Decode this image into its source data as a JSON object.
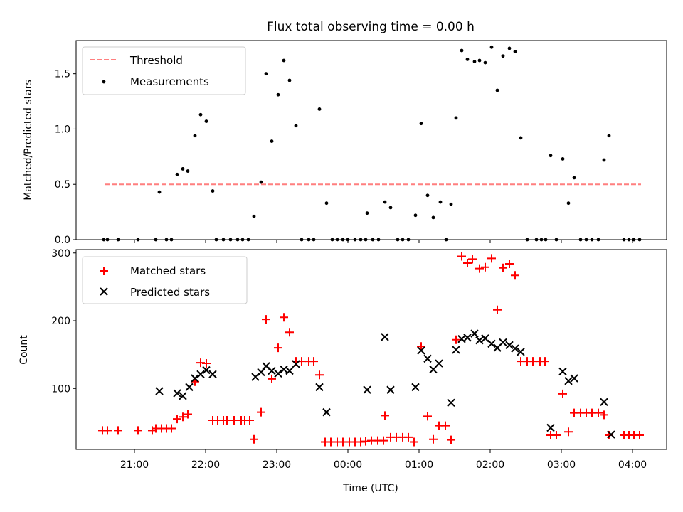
{
  "chart_data": [
    {
      "type": "scatter",
      "title": "Flux total observing time = 0.00 h",
      "xlabel": "",
      "ylabel": "Matched/Predicted stars",
      "x_unit": "hours since 21:00 UTC",
      "xlim": [
        -0.82,
        7.48
      ],
      "ylim": [
        0,
        1.8
      ],
      "yticks": [
        0.0,
        0.5,
        1.0,
        1.5
      ],
      "ytick_labels": [
        "0.0",
        "0.5",
        "1.0",
        "1.5"
      ],
      "legend_position": "top-left",
      "legend": [
        "Threshold",
        "Measurements"
      ],
      "threshold": {
        "name": "Threshold",
        "value": 0.5,
        "x_range": [
          -0.42,
          7.12
        ],
        "color": "#ff7f7f"
      },
      "series": [
        {
          "name": "Measurements",
          "marker": "dot",
          "color": "#000000",
          "points": [
            [
              -0.43,
              0
            ],
            [
              -0.38,
              0
            ],
            [
              -0.23,
              0
            ],
            [
              0.05,
              0
            ],
            [
              0.3,
              0
            ],
            [
              0.35,
              0.43
            ],
            [
              0.45,
              0
            ],
            [
              0.52,
              0
            ],
            [
              0.6,
              0.59
            ],
            [
              0.68,
              0.64
            ],
            [
              0.75,
              0.62
            ],
            [
              0.85,
              0.94
            ],
            [
              0.93,
              1.13
            ],
            [
              1.01,
              1.07
            ],
            [
              1.1,
              0.44
            ],
            [
              1.15,
              0
            ],
            [
              1.25,
              0
            ],
            [
              1.35,
              0
            ],
            [
              1.45,
              0
            ],
            [
              1.52,
              0
            ],
            [
              1.6,
              0
            ],
            [
              1.68,
              0.21
            ],
            [
              1.78,
              0.52
            ],
            [
              1.85,
              1.5
            ],
            [
              1.93,
              0.89
            ],
            [
              2.02,
              1.31
            ],
            [
              2.1,
              1.62
            ],
            [
              2.18,
              1.44
            ],
            [
              2.27,
              1.03
            ],
            [
              2.35,
              0
            ],
            [
              2.45,
              0
            ],
            [
              2.52,
              0
            ],
            [
              2.6,
              1.18
            ],
            [
              2.7,
              0.33
            ],
            [
              2.78,
              0
            ],
            [
              2.85,
              0
            ],
            [
              2.93,
              0
            ],
            [
              3.0,
              0
            ],
            [
              3.1,
              0
            ],
            [
              3.18,
              0
            ],
            [
              3.25,
              0
            ],
            [
              3.27,
              0.24
            ],
            [
              3.35,
              0
            ],
            [
              3.43,
              0
            ],
            [
              3.52,
              0.34
            ],
            [
              3.6,
              0.29
            ],
            [
              3.7,
              0
            ],
            [
              3.77,
              0
            ],
            [
              3.85,
              0
            ],
            [
              3.95,
              0.22
            ],
            [
              4.03,
              1.05
            ],
            [
              4.12,
              0.4
            ],
            [
              4.2,
              0.2
            ],
            [
              4.3,
              0.34
            ],
            [
              4.38,
              0
            ],
            [
              4.45,
              0.32
            ],
            [
              4.52,
              1.1
            ],
            [
              4.6,
              1.71
            ],
            [
              4.68,
              1.63
            ],
            [
              4.78,
              1.61
            ],
            [
              4.85,
              1.62
            ],
            [
              4.93,
              1.6
            ],
            [
              5.02,
              1.74
            ],
            [
              5.1,
              1.35
            ],
            [
              5.18,
              1.66
            ],
            [
              5.27,
              1.73
            ],
            [
              5.35,
              1.7
            ],
            [
              5.43,
              0.92
            ],
            [
              5.52,
              0
            ],
            [
              5.65,
              0
            ],
            [
              5.72,
              0
            ],
            [
              5.78,
              0
            ],
            [
              5.85,
              0.76
            ],
            [
              5.93,
              0
            ],
            [
              6.02,
              0.73
            ],
            [
              6.1,
              0.33
            ],
            [
              6.18,
              0.56
            ],
            [
              6.27,
              0
            ],
            [
              6.35,
              0
            ],
            [
              6.43,
              0
            ],
            [
              6.52,
              0
            ],
            [
              6.6,
              0.72
            ],
            [
              6.67,
              0.94
            ],
            [
              6.88,
              0
            ],
            [
              6.95,
              0
            ],
            [
              7.02,
              0
            ],
            [
              7.1,
              0
            ]
          ]
        }
      ]
    },
    {
      "type": "scatter",
      "title": "",
      "xlabel": "Time (UTC)",
      "ylabel": "Count",
      "x_unit": "hours since 21:00 UTC",
      "xlim": [
        -0.82,
        7.48
      ],
      "ylim": [
        10,
        305
      ],
      "yticks": [
        100,
        200,
        300
      ],
      "ytick_labels": [
        "100",
        "200",
        "300"
      ],
      "xticks": [
        0,
        1,
        2,
        3,
        4,
        5,
        6,
        7
      ],
      "xtick_labels": [
        "21:00",
        "22:00",
        "23:00",
        "00:00",
        "01:00",
        "02:00",
        "03:00",
        "04:00"
      ],
      "legend_position": "top-left",
      "legend": [
        "Matched stars",
        "Predicted stars"
      ],
      "series": [
        {
          "name": "Matched stars",
          "marker": "plus",
          "color": "#ff0000",
          "points": [
            [
              -0.45,
              38
            ],
            [
              -0.38,
              38
            ],
            [
              -0.23,
              38
            ],
            [
              0.05,
              38
            ],
            [
              0.25,
              38
            ],
            [
              0.3,
              41
            ],
            [
              0.38,
              41
            ],
            [
              0.45,
              41
            ],
            [
              0.52,
              41
            ],
            [
              0.6,
              55
            ],
            [
              0.68,
              58
            ],
            [
              0.75,
              62
            ],
            [
              0.85,
              110
            ],
            [
              0.93,
              138
            ],
            [
              1.01,
              137
            ],
            [
              1.1,
              53
            ],
            [
              1.17,
              53
            ],
            [
              1.25,
              53
            ],
            [
              1.3,
              53
            ],
            [
              1.4,
              53
            ],
            [
              1.5,
              53
            ],
            [
              1.55,
              53
            ],
            [
              1.62,
              53
            ],
            [
              1.68,
              25
            ],
            [
              1.78,
              65
            ],
            [
              1.85,
              202
            ],
            [
              1.93,
              114
            ],
            [
              2.02,
              160
            ],
            [
              2.1,
              205
            ],
            [
              2.18,
              183
            ],
            [
              2.27,
              140
            ],
            [
              2.35,
              140
            ],
            [
              2.45,
              140
            ],
            [
              2.52,
              140
            ],
            [
              2.6,
              120
            ],
            [
              2.68,
              21
            ],
            [
              2.76,
              21
            ],
            [
              2.85,
              21
            ],
            [
              2.93,
              21
            ],
            [
              3.02,
              21
            ],
            [
              3.1,
              21
            ],
            [
              3.18,
              21
            ],
            [
              3.25,
              22
            ],
            [
              3.33,
              23
            ],
            [
              3.42,
              23
            ],
            [
              3.5,
              23
            ],
            [
              3.52,
              60
            ],
            [
              3.6,
              28
            ],
            [
              3.68,
              28
            ],
            [
              3.77,
              28
            ],
            [
              3.85,
              28
            ],
            [
              3.93,
              21
            ],
            [
              4.03,
              162
            ],
            [
              4.12,
              59
            ],
            [
              4.2,
              25
            ],
            [
              4.28,
              45
            ],
            [
              4.37,
              45
            ],
            [
              4.45,
              24
            ],
            [
              4.52,
              172
            ],
            [
              4.6,
              295
            ],
            [
              4.68,
              285
            ],
            [
              4.75,
              291
            ],
            [
              4.85,
              277
            ],
            [
              4.93,
              279
            ],
            [
              5.02,
              292
            ],
            [
              5.1,
              216
            ],
            [
              5.18,
              278
            ],
            [
              5.27,
              284
            ],
            [
              5.35,
              267
            ],
            [
              5.43,
              140
            ],
            [
              5.52,
              140
            ],
            [
              5.6,
              140
            ],
            [
              5.7,
              140
            ],
            [
              5.77,
              140
            ],
            [
              5.85,
              31
            ],
            [
              5.93,
              31
            ],
            [
              6.02,
              92
            ],
            [
              6.1,
              36
            ],
            [
              6.18,
              64
            ],
            [
              6.27,
              64
            ],
            [
              6.35,
              64
            ],
            [
              6.43,
              64
            ],
            [
              6.52,
              64
            ],
            [
              6.6,
              61
            ],
            [
              6.67,
              31
            ],
            [
              6.88,
              31
            ],
            [
              6.95,
              31
            ],
            [
              7.02,
              31
            ],
            [
              7.1,
              31
            ]
          ]
        },
        {
          "name": "Predicted stars",
          "marker": "x",
          "color": "#000000",
          "points": [
            [
              0.35,
              96
            ],
            [
              0.6,
              93
            ],
            [
              0.68,
              89
            ],
            [
              0.77,
              102
            ],
            [
              0.85,
              115
            ],
            [
              0.93,
              121
            ],
            [
              1.01,
              127
            ],
            [
              1.1,
              121
            ],
            [
              1.7,
              117
            ],
            [
              1.78,
              124
            ],
            [
              1.85,
              133
            ],
            [
              1.93,
              126
            ],
            [
              2.02,
              122
            ],
            [
              2.1,
              128
            ],
            [
              2.18,
              126
            ],
            [
              2.27,
              136
            ],
            [
              2.6,
              102
            ],
            [
              2.7,
              65
            ],
            [
              3.27,
              98
            ],
            [
              3.52,
              176
            ],
            [
              3.6,
              98
            ],
            [
              3.95,
              102
            ],
            [
              4.03,
              156
            ],
            [
              4.12,
              144
            ],
            [
              4.2,
              128
            ],
            [
              4.28,
              137
            ],
            [
              4.45,
              79
            ],
            [
              4.52,
              157
            ],
            [
              4.6,
              173
            ],
            [
              4.68,
              175
            ],
            [
              4.78,
              181
            ],
            [
              4.85,
              171
            ],
            [
              4.93,
              174
            ],
            [
              5.02,
              166
            ],
            [
              5.1,
              160
            ],
            [
              5.18,
              168
            ],
            [
              5.27,
              164
            ],
            [
              5.35,
              159
            ],
            [
              5.43,
              154
            ],
            [
              5.85,
              42
            ],
            [
              6.02,
              125
            ],
            [
              6.1,
              111
            ],
            [
              6.18,
              115
            ],
            [
              6.6,
              80
            ],
            [
              6.7,
              32
            ]
          ]
        }
      ]
    }
  ]
}
